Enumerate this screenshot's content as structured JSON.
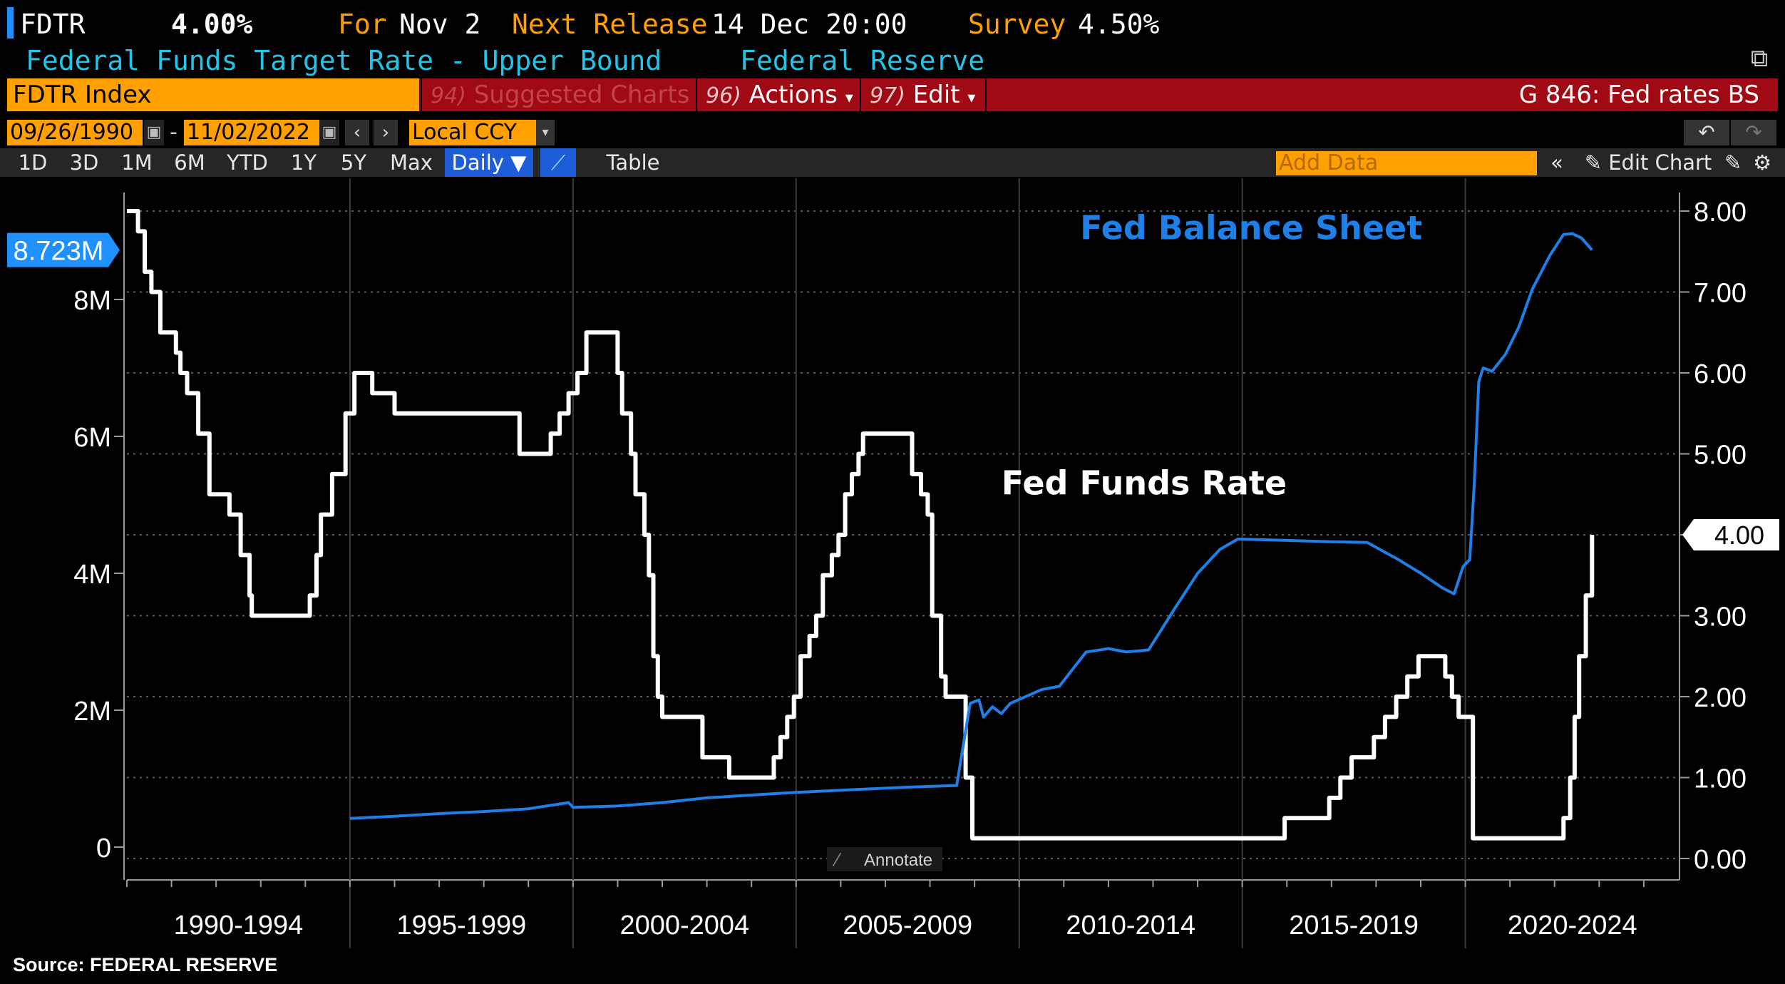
{
  "header": {
    "ticker": "FDTR",
    "value": "4.00%",
    "for_label": "For",
    "for_date": "Nov 2",
    "next_release_label": "Next Release",
    "next_release": "14 Dec 20:00",
    "survey_label": "Survey",
    "survey": "4.50%",
    "description": "Federal Funds Target Rate - Upper Bound",
    "source_org": "Federal Reserve"
  },
  "command_bar": {
    "security": "FDTR Index",
    "menu": [
      {
        "num": "94)",
        "label": "Suggested Charts",
        "caret": ""
      },
      {
        "num": "96)",
        "label": "Actions",
        "caret": "▾"
      },
      {
        "num": "97)",
        "label": "Edit",
        "caret": "▾"
      }
    ],
    "chart_id": "G 846: Fed rates BS"
  },
  "date_range": {
    "start": "09/26/1990",
    "separator": "-",
    "end": "11/02/2022",
    "prev": "‹",
    "next": "›",
    "currency": "Local CCY",
    "undo": "↶",
    "redo": "↷"
  },
  "toolbar": {
    "periods": [
      "1D",
      "3D",
      "1M",
      "6M",
      "YTD",
      "1Y",
      "5Y",
      "Max"
    ],
    "frequency": "Daily ▼",
    "table": "Table",
    "add_data_placeholder": "Add Data",
    "collapse": "«",
    "edit_chart": "✎ Edit Chart"
  },
  "annotate_label": "Annotate",
  "source": "Source: FEDERAL RESERVE",
  "chart_data": {
    "type": "line",
    "xlim": [
      1990.0,
      2024.8
    ],
    "x_periods": [
      "1990-1994",
      "1995-1999",
      "2000-2004",
      "2005-2009",
      "2010-2014",
      "2015-2019",
      "2020-2024"
    ],
    "period_bounds": [
      1990,
      1995,
      2000,
      2005,
      2010,
      2015,
      2020,
      2025
    ],
    "left_axis": {
      "min": 0,
      "max": 8000000,
      "ticks": [
        0,
        2000000,
        4000000,
        6000000,
        8000000
      ],
      "tick_labels": [
        "0",
        "2M",
        "4M",
        "6M",
        "8M"
      ],
      "last_value_label": "8.723M",
      "last_value": 8723000
    },
    "right_axis": {
      "min": 0,
      "max": 8,
      "ticks": [
        0,
        1,
        2,
        3,
        4,
        5,
        6,
        7,
        8
      ],
      "tick_labels": [
        "0.00",
        "1.00",
        "2.00",
        "3.00",
        "4.00",
        "5.00",
        "6.00",
        "7.00",
        "8.00"
      ],
      "last_value_label": "4.00",
      "last_value": 4.0
    },
    "series": [
      {
        "name": "Fed Funds Rate",
        "axis": "right",
        "color": "#ffffff",
        "step": true,
        "points": [
          [
            1990.0,
            8.0
          ],
          [
            1990.25,
            7.75
          ],
          [
            1990.4,
            7.25
          ],
          [
            1990.55,
            7.0
          ],
          [
            1990.75,
            6.5
          ],
          [
            1991.1,
            6.25
          ],
          [
            1991.2,
            6.0
          ],
          [
            1991.35,
            5.75
          ],
          [
            1991.6,
            5.25
          ],
          [
            1991.85,
            4.5
          ],
          [
            1992.3,
            4.25
          ],
          [
            1992.55,
            3.75
          ],
          [
            1992.75,
            3.25
          ],
          [
            1992.8,
            3.0
          ],
          [
            1994.1,
            3.25
          ],
          [
            1994.25,
            3.75
          ],
          [
            1994.35,
            4.25
          ],
          [
            1994.6,
            4.75
          ],
          [
            1994.9,
            5.5
          ],
          [
            1995.1,
            6.0
          ],
          [
            1995.5,
            5.75
          ],
          [
            1996.0,
            5.5
          ],
          [
            1997.2,
            5.5
          ],
          [
            1998.8,
            5.0
          ],
          [
            1999.5,
            5.25
          ],
          [
            1999.7,
            5.5
          ],
          [
            1999.9,
            5.75
          ],
          [
            2000.1,
            6.0
          ],
          [
            2000.3,
            6.5
          ],
          [
            2001.0,
            6.0
          ],
          [
            2001.1,
            5.5
          ],
          [
            2001.3,
            5.0
          ],
          [
            2001.4,
            4.5
          ],
          [
            2001.6,
            4.0
          ],
          [
            2001.7,
            3.5
          ],
          [
            2001.8,
            2.5
          ],
          [
            2001.9,
            2.0
          ],
          [
            2002.0,
            1.75
          ],
          [
            2002.9,
            1.25
          ],
          [
            2003.5,
            1.0
          ],
          [
            2004.5,
            1.25
          ],
          [
            2004.65,
            1.5
          ],
          [
            2004.8,
            1.75
          ],
          [
            2004.95,
            2.0
          ],
          [
            2005.1,
            2.5
          ],
          [
            2005.3,
            2.75
          ],
          [
            2005.45,
            3.0
          ],
          [
            2005.6,
            3.5
          ],
          [
            2005.8,
            3.75
          ],
          [
            2005.95,
            4.0
          ],
          [
            2006.1,
            4.5
          ],
          [
            2006.25,
            4.75
          ],
          [
            2006.4,
            5.0
          ],
          [
            2006.5,
            5.25
          ],
          [
            2007.6,
            4.75
          ],
          [
            2007.8,
            4.5
          ],
          [
            2007.95,
            4.25
          ],
          [
            2008.05,
            3.0
          ],
          [
            2008.25,
            2.25
          ],
          [
            2008.35,
            2.0
          ],
          [
            2008.8,
            1.0
          ],
          [
            2008.95,
            0.25
          ],
          [
            2015.95,
            0.5
          ],
          [
            2016.95,
            0.75
          ],
          [
            2017.2,
            1.0
          ],
          [
            2017.45,
            1.25
          ],
          [
            2017.95,
            1.5
          ],
          [
            2018.2,
            1.75
          ],
          [
            2018.45,
            2.0
          ],
          [
            2018.7,
            2.25
          ],
          [
            2018.95,
            2.5
          ],
          [
            2019.55,
            2.25
          ],
          [
            2019.7,
            2.0
          ],
          [
            2019.85,
            1.75
          ],
          [
            2020.17,
            0.25
          ],
          [
            2022.2,
            0.5
          ],
          [
            2022.35,
            1.0
          ],
          [
            2022.45,
            1.75
          ],
          [
            2022.55,
            2.5
          ],
          [
            2022.7,
            3.25
          ],
          [
            2022.84,
            4.0
          ]
        ]
      },
      {
        "name": "Fed Balance Sheet",
        "axis": "left",
        "color": "#1e7fe6",
        "step": false,
        "points": [
          [
            1995.0,
            420000
          ],
          [
            1996.0,
            450000
          ],
          [
            1997.0,
            490000
          ],
          [
            1998.0,
            520000
          ],
          [
            1999.0,
            560000
          ],
          [
            1999.9,
            650000
          ],
          [
            2000.0,
            580000
          ],
          [
            2001.0,
            600000
          ],
          [
            2002.0,
            650000
          ],
          [
            2003.0,
            720000
          ],
          [
            2004.0,
            760000
          ],
          [
            2005.0,
            800000
          ],
          [
            2006.0,
            830000
          ],
          [
            2007.0,
            860000
          ],
          [
            2007.7,
            880000
          ],
          [
            2008.6,
            900000
          ],
          [
            2008.75,
            1500000
          ],
          [
            2008.9,
            2100000
          ],
          [
            2009.1,
            2150000
          ],
          [
            2009.2,
            1900000
          ],
          [
            2009.4,
            2050000
          ],
          [
            2009.6,
            1950000
          ],
          [
            2009.8,
            2100000
          ],
          [
            2010.5,
            2300000
          ],
          [
            2010.9,
            2350000
          ],
          [
            2011.5,
            2850000
          ],
          [
            2012.0,
            2900000
          ],
          [
            2012.4,
            2850000
          ],
          [
            2012.9,
            2880000
          ],
          [
            2013.5,
            3500000
          ],
          [
            2014.0,
            4000000
          ],
          [
            2014.5,
            4350000
          ],
          [
            2014.9,
            4500000
          ],
          [
            2016.0,
            4480000
          ],
          [
            2017.0,
            4460000
          ],
          [
            2017.8,
            4450000
          ],
          [
            2018.5,
            4200000
          ],
          [
            2019.0,
            4000000
          ],
          [
            2019.5,
            3780000
          ],
          [
            2019.75,
            3700000
          ],
          [
            2019.95,
            4100000
          ],
          [
            2020.1,
            4200000
          ],
          [
            2020.2,
            5300000
          ],
          [
            2020.3,
            6800000
          ],
          [
            2020.4,
            7000000
          ],
          [
            2020.6,
            6950000
          ],
          [
            2020.9,
            7200000
          ],
          [
            2021.2,
            7600000
          ],
          [
            2021.5,
            8150000
          ],
          [
            2021.9,
            8650000
          ],
          [
            2022.2,
            8950000
          ],
          [
            2022.4,
            8960000
          ],
          [
            2022.6,
            8900000
          ],
          [
            2022.84,
            8723000
          ]
        ]
      }
    ],
    "annotations": [
      {
        "text": "Fed Balance Sheet",
        "color": "#1e7fe6",
        "at": [
          2015.2,
          7.65
        ]
      },
      {
        "text": "Fed Funds Rate",
        "color": "#ffffff",
        "at": [
          2012.8,
          4.5
        ]
      }
    ],
    "grid": "horizontal dotted (right axis) + vertical period separators"
  }
}
